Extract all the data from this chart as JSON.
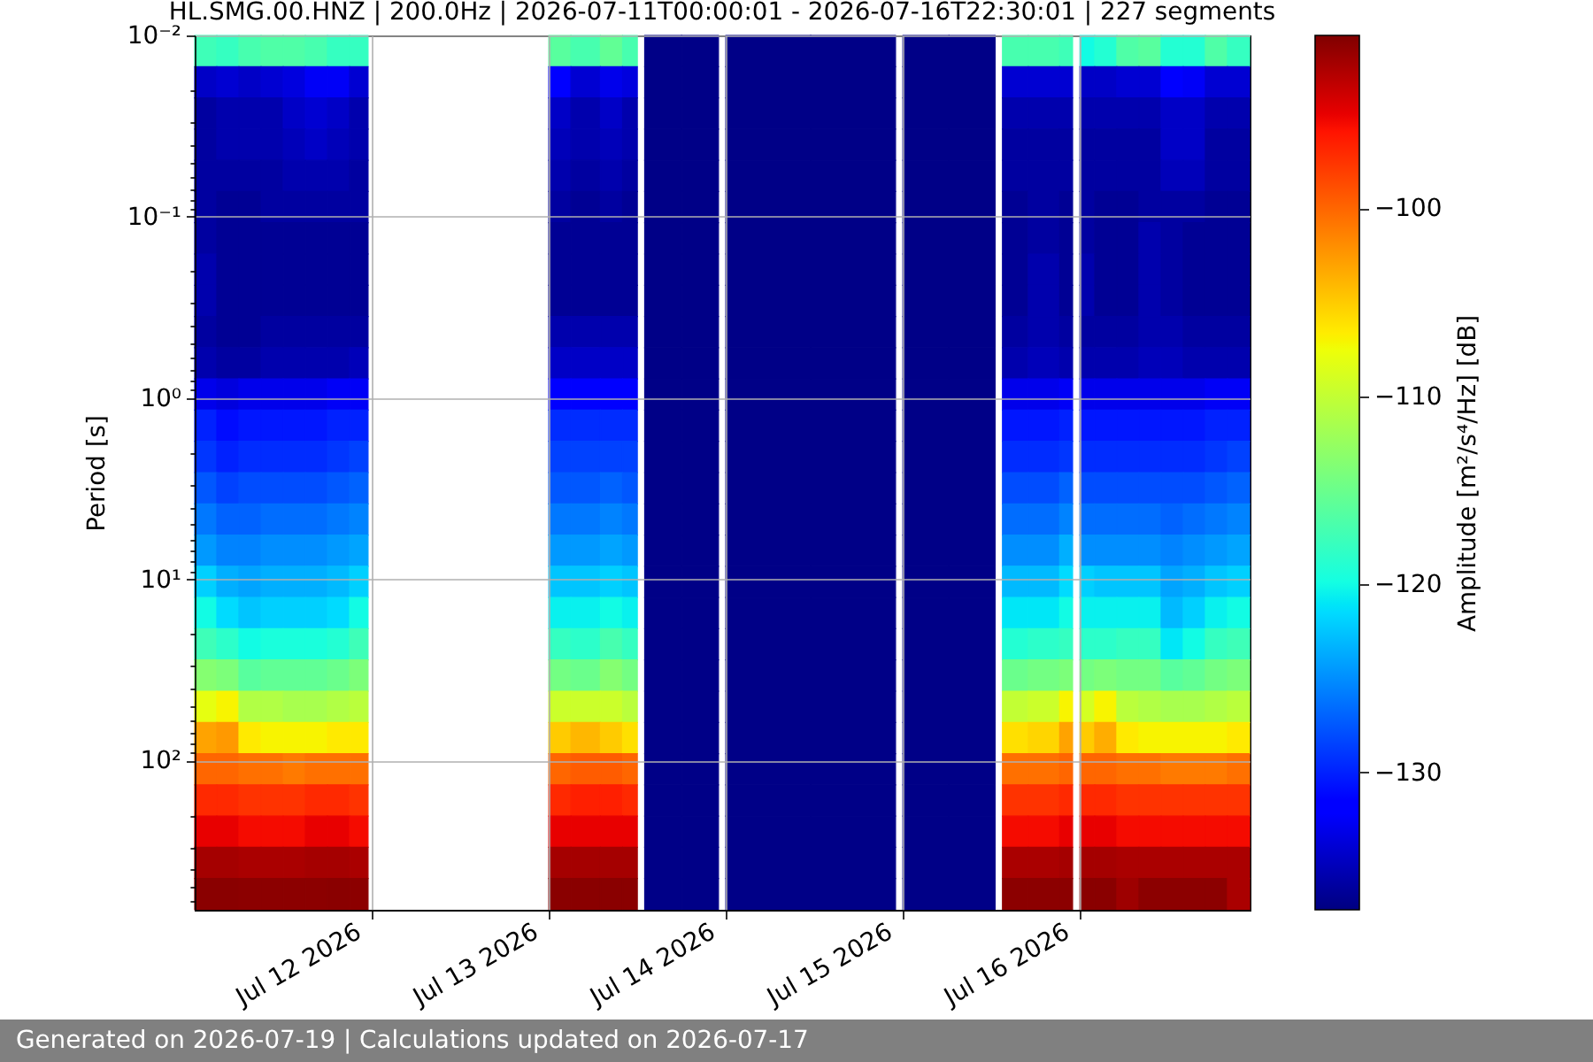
{
  "chart_data": {
    "type": "heatmap",
    "title": "HL.SMG.00.HNZ | 200.0Hz | 2026-07-11T00:00:01 - 2026-07-16T22:30:01 | 227 segments",
    "ylabel": "Period [s]",
    "clabel": "Amplitude [m²/s⁴/Hz] [dB]",
    "annotations": [
      "Generated on 2026-07-19 | Calculations updated on 2026-07-17"
    ],
    "x": [
      "2026-07-11T01:30",
      "2026-07-11T04:30",
      "2026-07-11T07:30",
      "2026-07-11T10:30",
      "2026-07-11T13:30",
      "2026-07-11T16:30",
      "2026-07-11T19:30",
      "2026-07-11T22:30",
      "2026-07-12T00:30",
      "2026-07-12T23:30",
      "2026-07-13T00:30",
      "2026-07-13T05:30",
      "2026-07-13T08:30",
      "2026-07-13T11:30",
      "2026-07-13T12:30",
      "2026-07-13T13:30",
      "2026-07-13T22:30",
      "2026-07-13T23:30",
      "2026-07-14T00:30",
      "2026-07-14T22:30",
      "2026-07-14T23:30",
      "2026-07-15T00:30",
      "2026-07-15T12:00",
      "2026-07-15T13:00",
      "2026-07-15T14:00",
      "2026-07-15T20:00",
      "2026-07-15T22:30",
      "2026-07-15T23:30",
      "2026-07-16T00:30",
      "2026-07-16T03:30",
      "2026-07-16T06:30",
      "2026-07-16T09:30",
      "2026-07-16T12:30",
      "2026-07-16T15:30",
      "2026-07-16T18:30",
      "2026-07-16T21:30"
    ],
    "xlim": [
      "2026-07-11T00:00",
      "2026-07-16T23:00"
    ],
    "xticks": [
      {
        "value": "2026-07-12",
        "label": "Jul 12 2026"
      },
      {
        "value": "2026-07-13",
        "label": "Jul 13 2026"
      },
      {
        "value": "2026-07-14",
        "label": "Jul 14 2026"
      },
      {
        "value": "2026-07-15",
        "label": "Jul 15 2026"
      },
      {
        "value": "2026-07-16",
        "label": "Jul 16 2026"
      }
    ],
    "ylim": [
      665,
      0.01
    ],
    "yticks": [
      {
        "value": 0.01,
        "label": "10⁻²"
      },
      {
        "value": 0.02,
        "label": null
      },
      {
        "value": 0.03,
        "label": null
      },
      {
        "value": 0.04,
        "label": null
      },
      {
        "value": 0.05,
        "label": null
      },
      {
        "value": 0.06,
        "label": null
      },
      {
        "value": 0.07,
        "label": null
      },
      {
        "value": 0.08,
        "label": null
      },
      {
        "value": 0.09,
        "label": null
      },
      {
        "value": 0.1,
        "label": "10⁻¹"
      },
      {
        "value": 0.2,
        "label": null
      },
      {
        "value": 0.3,
        "label": null
      },
      {
        "value": 0.4,
        "label": null
      },
      {
        "value": 0.5,
        "label": null
      },
      {
        "value": 0.6,
        "label": null
      },
      {
        "value": 0.7,
        "label": null
      },
      {
        "value": 0.8,
        "label": null
      },
      {
        "value": 0.9,
        "label": null
      },
      {
        "value": 1,
        "label": "10⁰"
      },
      {
        "value": 2,
        "label": null
      },
      {
        "value": 3,
        "label": null
      },
      {
        "value": 4,
        "label": null
      },
      {
        "value": 5,
        "label": null
      },
      {
        "value": 6,
        "label": null
      },
      {
        "value": 7,
        "label": null
      },
      {
        "value": 8,
        "label": null
      },
      {
        "value": 9,
        "label": null
      },
      {
        "value": 10,
        "label": "10¹"
      },
      {
        "value": 20,
        "label": null
      },
      {
        "value": 30,
        "label": null
      },
      {
        "value": 40,
        "label": null
      },
      {
        "value": 50,
        "label": null
      },
      {
        "value": 60,
        "label": null
      },
      {
        "value": 70,
        "label": null
      },
      {
        "value": 80,
        "label": null
      },
      {
        "value": 90,
        "label": null
      },
      {
        "value": 100,
        "label": "10²"
      },
      {
        "value": 200,
        "label": null
      },
      {
        "value": 300,
        "label": null
      },
      {
        "value": 400,
        "label": null
      },
      {
        "value": 500,
        "label": null
      },
      {
        "value": 600,
        "label": null
      }
    ],
    "log": "y",
    "grid": true,
    "clim": [
      -137.3,
      -90.8
    ],
    "cticks": [
      {
        "value": -130,
        "label": "−130"
      },
      {
        "value": -120,
        "label": "−120"
      },
      {
        "value": -110,
        "label": "−110"
      },
      {
        "value": -100,
        "label": "−100"
      }
    ],
    "cells": [
      [
        -117.5,
        -118,
        -117,
        -116.5,
        -116.5,
        -117,
        -118,
        -118,
        null,
        null,
        -116,
        -117,
        -115.5,
        -117,
        null,
        -137,
        -137,
        null,
        -137,
        -137,
        null,
        -137,
        -137,
        null,
        -117,
        -117,
        -117.5,
        null,
        -120,
        -119,
        -116.5,
        -116,
        -119,
        -119,
        -116.5,
        -118
      ],
      [
        -134.5,
        -134,
        -134.5,
        -134,
        -133.5,
        -132.5,
        -132.5,
        -134,
        null,
        null,
        -132,
        -134,
        -133,
        -133.5,
        null,
        -137,
        -137,
        null,
        -137,
        -137,
        null,
        -137,
        -137,
        null,
        -134,
        -134,
        -134,
        null,
        -134.5,
        -134.5,
        -134,
        -134,
        -132,
        -132.5,
        -134,
        -134
      ],
      [
        -136,
        -135.5,
        -135.5,
        -135.5,
        -134.5,
        -134,
        -134.5,
        -135.5,
        null,
        null,
        -134.5,
        -135.5,
        -134.5,
        -135.5,
        null,
        -137,
        -137,
        null,
        -137,
        -137,
        null,
        -137,
        -137,
        null,
        -135.5,
        -135.5,
        -135.5,
        null,
        -135.5,
        -135.5,
        -135.5,
        -135.5,
        -134.5,
        -134.5,
        -135.5,
        -135.5
      ],
      [
        -136,
        -135.5,
        -135.5,
        -135.5,
        -135,
        -134.5,
        -135,
        -135.5,
        null,
        null,
        -135,
        -135.5,
        -135,
        -135.5,
        null,
        -137,
        -137,
        null,
        -137,
        -137,
        null,
        -137,
        -137,
        null,
        -136,
        -136,
        -136,
        null,
        -136,
        -136,
        -136,
        -136,
        -134.5,
        -134.5,
        -136,
        -136
      ],
      [
        -136,
        -136,
        -136,
        -136,
        -135.5,
        -135.5,
        -135.5,
        -136,
        null,
        null,
        -135.5,
        -136,
        -135.5,
        -136,
        null,
        -137,
        -137,
        null,
        -137,
        -137,
        null,
        -137,
        -137,
        null,
        -136,
        -136,
        -136,
        null,
        -136,
        -136,
        -136,
        -136,
        -135,
        -135,
        -136,
        -136
      ],
      [
        -136,
        -136.5,
        -136.5,
        -136,
        -136,
        -136,
        -136,
        -136,
        null,
        null,
        -136,
        -136.5,
        -136,
        -136.5,
        null,
        -137,
        -137,
        null,
        -137,
        -137,
        null,
        -137,
        -137,
        null,
        -136.5,
        -136,
        -136.5,
        null,
        -136,
        -136.5,
        -136.5,
        -136,
        -136,
        -136,
        -136.5,
        -136.5
      ],
      [
        -136,
        -136.5,
        -136.5,
        -136.5,
        -136.5,
        -136.5,
        -136.5,
        -136.5,
        null,
        null,
        -136.5,
        -136.5,
        -136.5,
        -136.5,
        null,
        -137,
        -137,
        null,
        -137,
        -137,
        null,
        -137,
        -137,
        null,
        -136.5,
        -136,
        -136.5,
        null,
        -136,
        -136.5,
        -136.5,
        -135.5,
        -136,
        -136.5,
        -136.5,
        -136.5
      ],
      [
        -135.5,
        -136.5,
        -136.5,
        -136.5,
        -136.5,
        -136.5,
        -136.5,
        -136.5,
        null,
        null,
        -136.5,
        -136.5,
        -136.5,
        -136.5,
        null,
        -137,
        -137,
        null,
        -137,
        -137,
        null,
        -137,
        -137,
        null,
        -136.5,
        -135.5,
        -136.5,
        null,
        -135.5,
        -136.5,
        -136.5,
        -135.5,
        -136,
        -136.5,
        -136.5,
        -136.5
      ],
      [
        -135.5,
        -136.5,
        -136.5,
        -136.5,
        -136.5,
        -136.5,
        -136.5,
        -136.5,
        null,
        null,
        -136.5,
        -136.5,
        -136.5,
        -136.5,
        null,
        -137,
        -137,
        null,
        -137,
        -137,
        null,
        -137,
        -137,
        null,
        -136.5,
        -135.5,
        -136.5,
        null,
        -135.5,
        -136.5,
        -136.5,
        -135.5,
        -136,
        -136.5,
        -136.5,
        -136.5
      ],
      [
        -136,
        -136.5,
        -136.5,
        -136,
        -136,
        -136,
        -136,
        -136,
        null,
        null,
        -135.5,
        -135.5,
        -135.5,
        -135.5,
        null,
        -137,
        -137,
        null,
        -137,
        -137,
        null,
        -137,
        -137,
        null,
        -136,
        -135.5,
        -136,
        null,
        -136,
        -136,
        -136,
        -135.5,
        -135.5,
        -136,
        -136,
        -136
      ],
      [
        -135.5,
        -136,
        -136,
        -135.5,
        -135.5,
        -135.5,
        -135.5,
        -135,
        null,
        null,
        -134.5,
        -134.5,
        -134.5,
        -134.5,
        null,
        -137,
        -137,
        null,
        -137,
        -137,
        null,
        -137,
        -137,
        null,
        -135.5,
        -135,
        -135.5,
        null,
        -135.5,
        -135.5,
        -135.5,
        -135,
        -135,
        -135.5,
        -135.5,
        -135.5
      ],
      [
        -133,
        -133.5,
        -133,
        -133,
        -133,
        -133,
        -132.5,
        -132.5,
        null,
        null,
        -132,
        -132,
        -132,
        -132,
        null,
        -137,
        -137,
        null,
        -137,
        -137,
        null,
        -137,
        -137,
        null,
        -133,
        -133,
        -132.5,
        null,
        -133,
        -133,
        -133,
        -133,
        -133,
        -133,
        -132.5,
        -132.5
      ],
      [
        -130,
        -131,
        -130.5,
        -130.5,
        -130.5,
        -130.5,
        -130,
        -130,
        null,
        null,
        -129.5,
        -129.5,
        -129.5,
        -129.5,
        null,
        -137,
        -137,
        null,
        -137,
        -137,
        null,
        -137,
        -137,
        null,
        -130.5,
        -130.5,
        -130,
        null,
        -130.5,
        -130.5,
        -130.5,
        -130.5,
        -130.5,
        -130.5,
        -130,
        -130
      ],
      [
        -129,
        -130,
        -129.5,
        -129.5,
        -129.5,
        -129.5,
        -129,
        -128.5,
        null,
        null,
        -128.5,
        -128.5,
        -128.5,
        -128.5,
        null,
        -137,
        -137,
        null,
        -137,
        -137,
        null,
        -137,
        -137,
        null,
        -129.5,
        -129.5,
        -129,
        null,
        -129.5,
        -129.5,
        -129.5,
        -129.5,
        -129.5,
        -129.5,
        -129,
        -128.5
      ],
      [
        -127.5,
        -128.5,
        -128,
        -128,
        -128,
        -128,
        -127.5,
        -127,
        null,
        null,
        -127.5,
        -127.5,
        -127,
        -127.5,
        null,
        -137,
        -137,
        null,
        -137,
        -137,
        null,
        -137,
        -137,
        null,
        -128,
        -128,
        -127,
        null,
        -128,
        -128,
        -128,
        -128,
        -128,
        -128,
        -127.5,
        -127
      ],
      [
        -126,
        -127,
        -127,
        -126.5,
        -126.5,
        -126.5,
        -126,
        -125.5,
        null,
        null,
        -126,
        -126,
        -125.5,
        -126,
        null,
        -137,
        -137,
        null,
        -137,
        -137,
        null,
        -137,
        -137,
        null,
        -126.5,
        -126.5,
        -125.5,
        null,
        -126.5,
        -126.5,
        -126.5,
        -126.5,
        -127,
        -126.5,
        -126,
        -125.5
      ],
      [
        -124.5,
        -125.5,
        -125.5,
        -125,
        -125,
        -125,
        -124.5,
        -124,
        null,
        null,
        -124.5,
        -124.5,
        -124,
        -124.5,
        null,
        -137,
        -137,
        null,
        -137,
        -137,
        null,
        -137,
        -137,
        null,
        -125,
        -125,
        -123.5,
        null,
        -125,
        -125,
        -125,
        -125,
        -125.5,
        -125,
        -124.5,
        -124
      ],
      [
        -122,
        -123.5,
        -124,
        -123.5,
        -123.5,
        -123.5,
        -123,
        -122,
        null,
        null,
        -122.5,
        -122.5,
        -122,
        -122.5,
        null,
        -137,
        -137,
        null,
        -137,
        -137,
        null,
        -137,
        -137,
        null,
        -123,
        -123,
        -121.5,
        null,
        -122,
        -122.5,
        -122.5,
        -122.5,
        -124,
        -123.5,
        -122.5,
        -122
      ],
      [
        -120,
        -121.5,
        -122.5,
        -122,
        -122,
        -122,
        -121.5,
        -120,
        null,
        null,
        -120.5,
        -120.5,
        -120,
        -120.5,
        null,
        -137,
        -137,
        null,
        -137,
        -137,
        null,
        -137,
        -137,
        null,
        -121,
        -121,
        -120,
        null,
        -120.5,
        -120.5,
        -120.5,
        -120.5,
        -123,
        -122,
        -120.5,
        -120
      ],
      [
        -117.5,
        -118.5,
        -120,
        -119.5,
        -119.5,
        -119.5,
        -119,
        -117.5,
        null,
        null,
        -118,
        -118.5,
        -117,
        -118,
        null,
        -137,
        -137,
        null,
        -137,
        -137,
        null,
        -137,
        -137,
        null,
        -119,
        -118.5,
        -118,
        null,
        -118.5,
        -118.5,
        -118,
        -118,
        -121,
        -120,
        -118,
        -117.5
      ],
      [
        -113.5,
        -114,
        -116,
        -115.5,
        -115.5,
        -115.5,
        -115,
        -114,
        null,
        null,
        -114.5,
        -115,
        -113.5,
        -114.5,
        null,
        -137,
        -137,
        null,
        -137,
        -137,
        null,
        -137,
        -137,
        null,
        -115,
        -114.5,
        -114,
        null,
        -114.5,
        -114,
        -114.5,
        -114.5,
        -116,
        -115.5,
        -114.5,
        -114
      ],
      [
        -108,
        -107,
        -111,
        -111,
        -111.5,
        -111.5,
        -111,
        -110.5,
        null,
        null,
        -109.5,
        -109.5,
        -109.5,
        -110.5,
        null,
        -137,
        -137,
        null,
        -137,
        -137,
        null,
        -137,
        -137,
        null,
        -110,
        -109.5,
        -107,
        null,
        -109,
        -107,
        -110.5,
        -111,
        -111.5,
        -111.5,
        -111,
        -110.5
      ],
      [
        -103,
        -102.5,
        -106.5,
        -107,
        -107,
        -107,
        -106.5,
        -106.5,
        null,
        null,
        -105,
        -104,
        -105,
        -106,
        null,
        -137,
        -137,
        null,
        -137,
        -137,
        null,
        -137,
        -137,
        null,
        -106,
        -105.5,
        -103,
        null,
        -105,
        -103.5,
        -106.5,
        -107,
        -107,
        -107,
        -107,
        -106.5
      ],
      [
        -100,
        -100,
        -100.5,
        -100.5,
        -101,
        -100.5,
        -100.5,
        -100.5,
        null,
        null,
        -100,
        -99.5,
        -99.5,
        -100,
        null,
        -137,
        -137,
        null,
        -137,
        -137,
        null,
        -137,
        -137,
        null,
        -100.5,
        -100.5,
        -100,
        null,
        -100,
        -100,
        -100.5,
        -100.5,
        -101,
        -101,
        -101,
        -100.5
      ],
      [
        -97,
        -97,
        -97.5,
        -97.5,
        -97.5,
        -97,
        -97,
        -97.5,
        null,
        null,
        -97,
        -96.5,
        -96.5,
        -97,
        null,
        -137,
        -137,
        null,
        -137,
        -137,
        null,
        -137,
        -137,
        null,
        -97.5,
        -97.5,
        -97,
        null,
        -97,
        -97,
        -97.5,
        -97.5,
        -97.5,
        -97.5,
        -97.5,
        -97.5
      ],
      [
        -95,
        -95,
        -95.5,
        -95.5,
        -95.5,
        -95,
        -95,
        -95.5,
        null,
        null,
        -95,
        -95,
        -95,
        -95,
        null,
        -137,
        -137,
        null,
        -137,
        -137,
        null,
        -137,
        -137,
        null,
        -95.5,
        -95.5,
        -95,
        null,
        -95,
        -95,
        -95.5,
        -95.5,
        -95.5,
        -95.5,
        -95.5,
        -95.5
      ],
      [
        -92.3,
        -92.3,
        -92.5,
        -92.5,
        -92.5,
        -92.3,
        -92.3,
        -92.5,
        null,
        null,
        -92.3,
        -92.3,
        -92.3,
        -92.3,
        null,
        -137,
        -137,
        null,
        -137,
        -137,
        null,
        -137,
        -137,
        null,
        -92.5,
        -92.5,
        -92.3,
        null,
        -92.3,
        -92.3,
        -92.5,
        -92.5,
        -92.5,
        -92.5,
        -92.5,
        -92.5
      ],
      [
        -91.2,
        -91.2,
        -91.3,
        -91.3,
        -91.3,
        -91.3,
        -91.2,
        -91.3,
        null,
        null,
        -91.2,
        -91.2,
        -91.2,
        -91.2,
        null,
        -137,
        -137,
        null,
        -137,
        -137,
        null,
        -137,
        -137,
        null,
        -91.3,
        -91.3,
        -91.3,
        null,
        -91.2,
        -91.2,
        -92,
        -91.3,
        -91.3,
        -91.3,
        -91.3,
        -92.5
      ]
    ]
  }
}
